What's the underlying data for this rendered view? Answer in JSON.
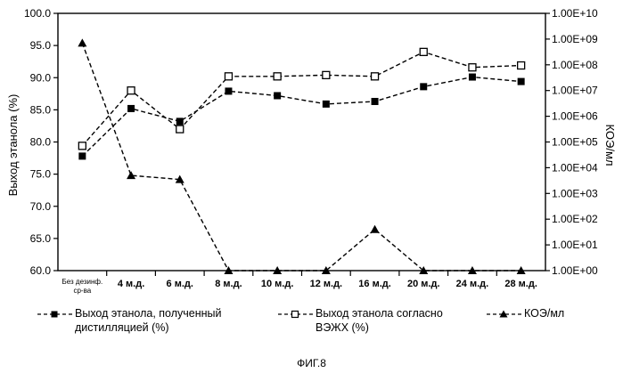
{
  "chart_data": {
    "type": "line",
    "categories": [
      "Без дезинф. ср-ва",
      "4 м.д.",
      "6 м.д.",
      "8 м.д.",
      "10 м.д.",
      "12 м.д.",
      "16 м.д.",
      "20 м.д.",
      "24 м.д.",
      "28 м.д."
    ],
    "series": [
      {
        "name": "Выход этанола, полученный дистилляцией (%)",
        "axis": "left",
        "marker": "filled-square",
        "values": [
          77.8,
          85.2,
          83.2,
          87.9,
          87.2,
          85.9,
          86.3,
          88.6,
          90.1,
          89.4
        ]
      },
      {
        "name": "Выход этанола согласно ВЭЖХ (%)",
        "axis": "left",
        "marker": "open-square",
        "values": [
          79.4,
          88.0,
          82.0,
          90.2,
          90.2,
          90.4,
          90.2,
          94.0,
          91.6,
          91.9
        ]
      },
      {
        "name": "КОЭ/мл",
        "axis": "right",
        "marker": "filled-triangle",
        "values": [
          700000000,
          5000,
          3500,
          1,
          1,
          1,
          40,
          1,
          1,
          1
        ]
      }
    ],
    "ylabel": "Выход этанола (%)",
    "ylim": [
      60,
      100
    ],
    "yticks": [
      "60.0",
      "65.0",
      "70.0",
      "75.0",
      "80.0",
      "85.0",
      "90.0",
      "95.0",
      "100.0"
    ],
    "y2label": "КОЭ/мл",
    "y2scale": "log",
    "y2lim": [
      1,
      10000000000
    ],
    "y2ticks": [
      "1.00E+00",
      "1.00E+01",
      "1.00E+02",
      "1.00E+03",
      "1.00E+04",
      "1.00E+05",
      "1.00E+06",
      "1.00E+07",
      "1.00E+08",
      "1.00E+09",
      "1.00E+10"
    ],
    "grid": false,
    "legend_position": "bottom"
  },
  "legend": {
    "distill_line1": "Выход этанола, полученный",
    "distill_line2": "дистилляцией (%)",
    "hplc_line1": "Выход этанола согласно",
    "hplc_line2": "ВЭЖХ (%)",
    "cfu": "КОЭ/мл"
  },
  "caption": "ФИГ.8"
}
